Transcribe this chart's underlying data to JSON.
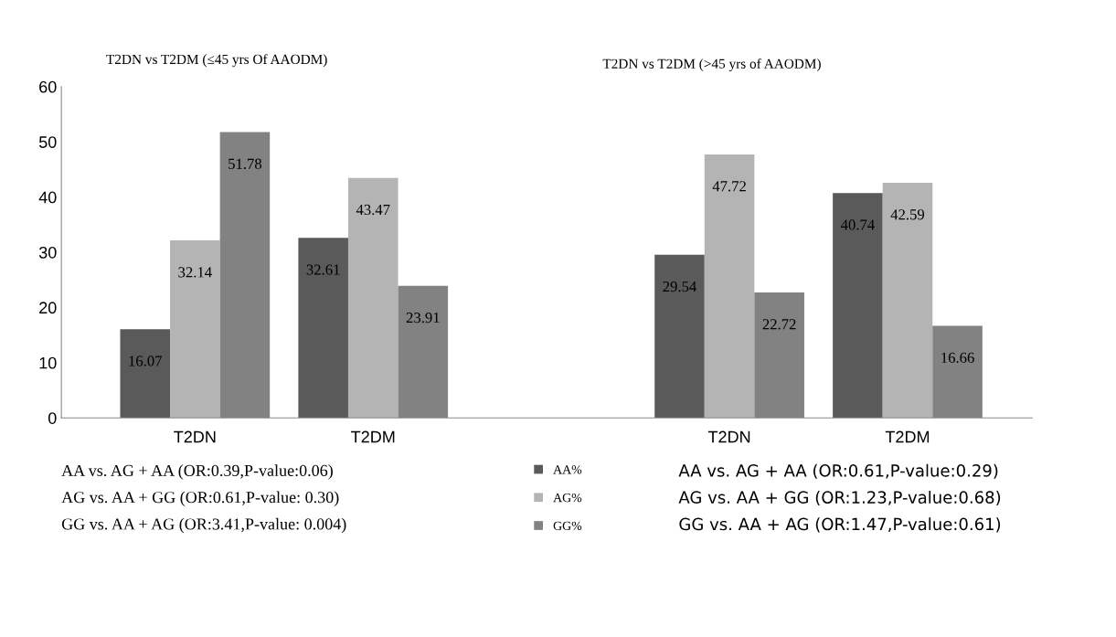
{
  "chart_data": {
    "type": "bar",
    "title": "T2DN vs T2DM (≤45 yrs Of AAODM)",
    "subtitle": "T2DN vs T2DM (>45 yrs of AAODM)",
    "categories": [
      "T2DN",
      "T2DM",
      null,
      "T2DN",
      "T2DM"
    ],
    "series": [
      {
        "name": "AA%",
        "color": "#5a5a5a",
        "values": [
          16.07,
          32.61,
          null,
          29.54,
          40.74
        ]
      },
      {
        "name": "AG%",
        "color": "#b4b4b4",
        "values": [
          32.14,
          43.47,
          null,
          47.72,
          42.59
        ]
      },
      {
        "name": "GG%",
        "color": "#828282",
        "values": [
          51.78,
          23.91,
          null,
          22.72,
          16.66
        ]
      }
    ],
    "ylim": [
      0,
      60
    ],
    "yticks": [
      0,
      10,
      20,
      30,
      40,
      50,
      60
    ],
    "grid": false,
    "legend": "bottom",
    "data_labels": true,
    "annotations": [
      "AA vs. AG + AA (OR:0.39,P-value:0.06)",
      "AG vs. AA + GG (OR:0.61,P-value: 0.30)",
      "GG vs. AA + AG (OR:3.41,P-value: 0.004)",
      "AA vs. AG + AA (OR:0.61,P-value:0.29)",
      "AG vs. AA + GG (OR:1.23,P-value:0.68)",
      "GG vs. AA + AG (OR:1.47,P-value:0.61)"
    ]
  }
}
